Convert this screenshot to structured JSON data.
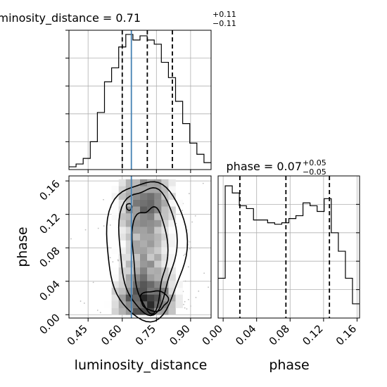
{
  "figure": {
    "type": "corner-plot",
    "parameters": [
      "luminosity_distance",
      "phase"
    ]
  },
  "chart_data": [
    {
      "panel": "luminosity_distance-marginal",
      "type": "histogram-step",
      "title": {
        "main": "luminosity_distance = 0.71",
        "sup": "+0.11",
        "sub": "−0.11"
      },
      "x_range": [
        0.366,
        0.99
      ],
      "y_range": [
        0,
        1.0
      ],
      "y_ticks": [
        0.2,
        0.4,
        0.6,
        0.8,
        1.0
      ],
      "bin_edges": [
        0.366,
        0.3972,
        0.4284,
        0.4596,
        0.4908,
        0.522,
        0.5532,
        0.5844,
        0.6156,
        0.6468,
        0.678,
        0.7092,
        0.7404,
        0.7716,
        0.8028,
        0.834,
        0.8652,
        0.8964,
        0.9276,
        0.9588,
        0.99
      ],
      "counts": [
        0.02,
        0.04,
        0.08,
        0.2,
        0.41,
        0.63,
        0.73,
        0.88,
        0.97,
        0.93,
        0.96,
        0.93,
        0.9,
        0.77,
        0.66,
        0.49,
        0.33,
        0.19,
        0.11,
        0.05
      ],
      "quantiles": [
        0.6,
        0.71,
        0.82
      ],
      "truth": 0.64,
      "grid": true
    },
    {
      "panel": "phase-marginal",
      "type": "histogram-step",
      "title": {
        "main": "phase = 0.07",
        "sup": "+0.05",
        "sub": "−0.05"
      },
      "x_range": [
        -0.006,
        0.163
      ],
      "x_ticks": [
        0.0,
        0.04,
        0.08,
        0.12,
        0.16
      ],
      "x_tick_labels": [
        "0.00",
        "0.04",
        "0.08",
        "0.12",
        "0.16"
      ],
      "xlabel": "phase",
      "y_range": [
        0,
        1.0
      ],
      "bin_edges": [
        -0.006,
        0.00245,
        0.0109,
        0.01935,
        0.0278,
        0.03625,
        0.0447,
        0.05315,
        0.0616,
        0.07005,
        0.0785,
        0.08695,
        0.0954,
        0.10385,
        0.1123,
        0.12075,
        0.1292,
        0.13765,
        0.1461,
        0.15455,
        0.163
      ],
      "counts": [
        0.28,
        0.93,
        0.88,
        0.79,
        0.77,
        0.69,
        0.69,
        0.67,
        0.66,
        0.67,
        0.7,
        0.72,
        0.81,
        0.79,
        0.75,
        0.84,
        0.6,
        0.47,
        0.28,
        0.1
      ],
      "quantiles": [
        0.02,
        0.075,
        0.127
      ],
      "grid": true
    },
    {
      "panel": "luminosity_distance-phase-2d",
      "type": "2d-histogram-contour",
      "x_range": [
        0.366,
        0.99
      ],
      "y_range": [
        -0.004,
        0.166
      ],
      "x_ticks": [
        0.45,
        0.6,
        0.75,
        0.9
      ],
      "x_tick_labels": [
        "0.45",
        "0.60",
        "0.75",
        "0.90"
      ],
      "y_ticks": [
        0.0,
        0.04,
        0.08,
        0.12,
        0.16
      ],
      "y_tick_labels": [
        "0.00",
        "0.04",
        "0.08",
        "0.12",
        "0.16"
      ],
      "xlabel": "luminosity_distance",
      "ylabel": "phase",
      "truth_x": 0.64,
      "grid": true
    }
  ],
  "colors": {
    "truth": "#4682b4",
    "line": "#000000",
    "grid": "#b0b0b0",
    "scatter": "#bdbdbd"
  }
}
